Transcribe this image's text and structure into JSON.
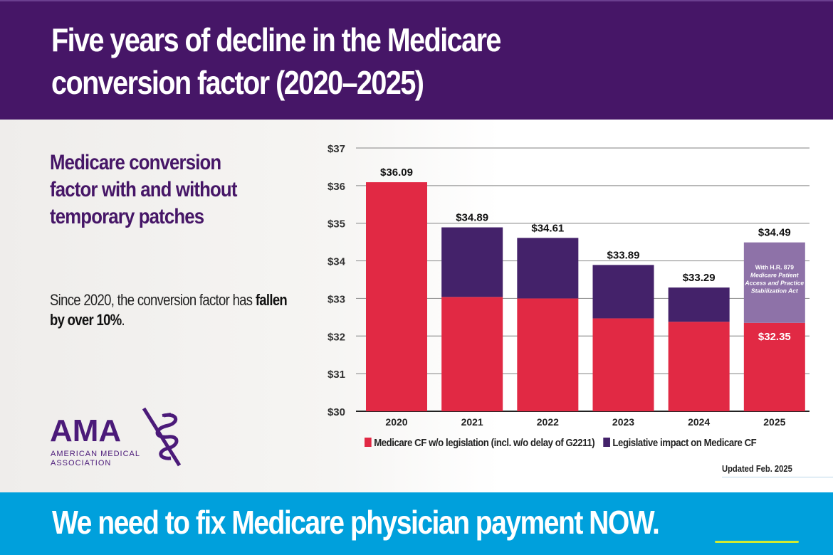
{
  "header": {
    "title": "Five years of decline in the Medicare conversion factor (2020–2025)"
  },
  "sidebar": {
    "subtitle": "Medicare conversion factor with and without temporary patches",
    "body_plain": "Since 2020, the conversion factor has ",
    "body_bold": "fallen by over 10%",
    "body_end": "."
  },
  "logo": {
    "name": "AMA",
    "line1": "AMERICAN MEDICAL",
    "line2": "ASSOCIATION",
    "icon": "staff-of-asclepius-icon"
  },
  "colors": {
    "header": "#461667",
    "red": "#e12944",
    "purple": "#44226a",
    "lavender": "#8e72a8",
    "footer": "#00a0dc",
    "gridline": "#999999"
  },
  "chart_data": {
    "type": "bar",
    "stacked": true,
    "title": "Medicare conversion factor with and without temporary patches",
    "xlabel": "",
    "ylabel": "",
    "ylim": [
      30,
      37
    ],
    "yticks": [
      30,
      31,
      32,
      33,
      34,
      35,
      36,
      37
    ],
    "ytick_labels": [
      "$30",
      "$31",
      "$32",
      "$33",
      "$34",
      "$35",
      "$36",
      "$37"
    ],
    "grid": true,
    "categories": [
      "2020",
      "2021",
      "2022",
      "2023",
      "2024",
      "2025"
    ],
    "series": [
      {
        "name": "Medicare CF w/o legislation (incl. w/o delay of G2211)",
        "color": "#e12944",
        "values": [
          36.09,
          33.04,
          33.0,
          32.47,
          32.38,
          32.35
        ]
      },
      {
        "name": "Legislative impact on Medicare CF",
        "color": "#44226a",
        "values": [
          0,
          1.85,
          1.61,
          1.42,
          0.91,
          2.14
        ]
      }
    ],
    "totals": [
      36.09,
      34.89,
      34.61,
      33.89,
      33.29,
      34.49
    ],
    "data_labels": [
      "$36.09",
      "$34.89",
      "$34.61",
      "$33.89",
      "$33.29",
      "$34.49"
    ],
    "inner_label_2025": "$32.35",
    "annotation_2025": {
      "line1": "With H.R. 879",
      "line2": "Medicare Patient",
      "line3": "Access and Practice",
      "line4": "Stabilization Act",
      "color": "#8e72a8"
    },
    "legend_position": "bottom",
    "note": "Updated Feb. 2025"
  },
  "footer": {
    "cta": "We need to fix Medicare physician payment NOW."
  }
}
